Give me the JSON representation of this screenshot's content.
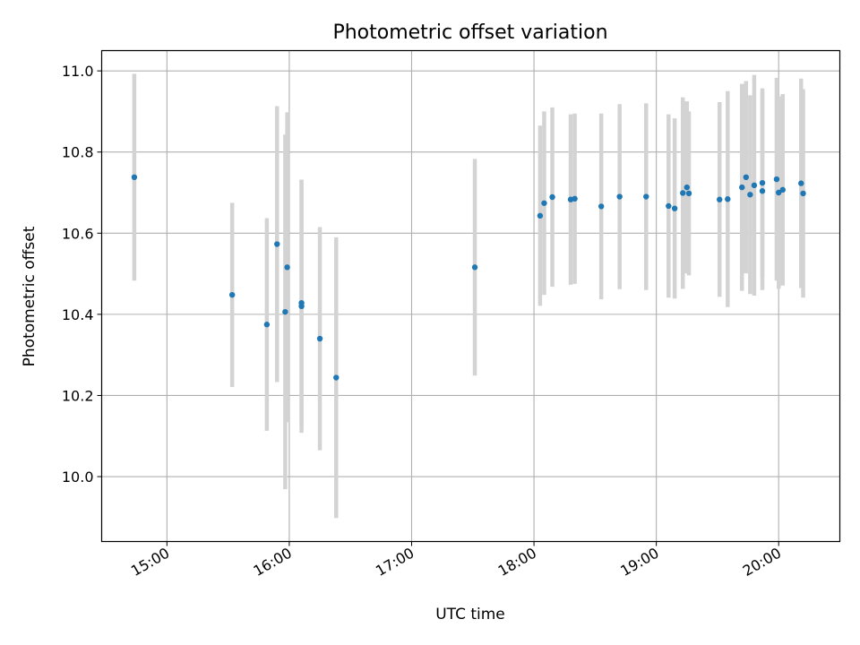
{
  "chart_data": {
    "type": "scatter",
    "title": "Photometric offset variation",
    "xlabel": "UTC time",
    "ylabel": "Photometric offset",
    "x_type": "time",
    "xlim": [
      "14:28",
      "20:30"
    ],
    "ylim": [
      9.84,
      11.05
    ],
    "x_ticks": [
      "15:00",
      "16:00",
      "17:00",
      "18:00",
      "19:00",
      "20:00"
    ],
    "y_ticks": [
      10.0,
      10.2,
      10.4,
      10.6,
      10.8,
      11.0
    ],
    "y_tick_labels": [
      "10.0",
      "10.2",
      "10.4",
      "10.6",
      "10.8",
      "11.0"
    ],
    "grid": true,
    "legend": "none",
    "colors": {
      "points": "#1f77b4",
      "error_bars": "#d3d3d3",
      "grid": "#b0b0b0",
      "axes": "#000000"
    },
    "series": [
      {
        "points": [
          {
            "x": "14:44",
            "y": 10.738,
            "err": 0.255
          },
          {
            "x": "15:32",
            "y": 10.448,
            "err": 0.227
          },
          {
            "x": "15:49",
            "y": 10.375,
            "err": 0.262
          },
          {
            "x": "15:54",
            "y": 10.573,
            "err": 0.34
          },
          {
            "x": "15:58",
            "y": 10.406,
            "err": 0.437
          },
          {
            "x": "15:59",
            "y": 10.516,
            "err": 0.382
          },
          {
            "x": "16:06",
            "y": 10.428,
            "err": 0.302
          },
          {
            "x": "16:06",
            "y": 10.42,
            "err": 0.312
          },
          {
            "x": "16:15",
            "y": 10.34,
            "err": 0.275
          },
          {
            "x": "16:23",
            "y": 10.244,
            "err": 0.346
          },
          {
            "x": "17:31",
            "y": 10.516,
            "err": 0.267
          },
          {
            "x": "18:03",
            "y": 10.643,
            "err": 0.222
          },
          {
            "x": "18:05",
            "y": 10.674,
            "err": 0.226
          },
          {
            "x": "18:09",
            "y": 10.689,
            "err": 0.221
          },
          {
            "x": "18:18",
            "y": 10.683,
            "err": 0.21
          },
          {
            "x": "18:20",
            "y": 10.685,
            "err": 0.21
          },
          {
            "x": "18:33",
            "y": 10.666,
            "err": 0.229
          },
          {
            "x": "18:42",
            "y": 10.69,
            "err": 0.228
          },
          {
            "x": "18:55",
            "y": 10.69,
            "err": 0.23
          },
          {
            "x": "19:06",
            "y": 10.667,
            "err": 0.226
          },
          {
            "x": "19:09",
            "y": 10.661,
            "err": 0.222
          },
          {
            "x": "19:13",
            "y": 10.699,
            "err": 0.236
          },
          {
            "x": "19:15",
            "y": 10.713,
            "err": 0.212
          },
          {
            "x": "19:16",
            "y": 10.698,
            "err": 0.202
          },
          {
            "x": "19:31",
            "y": 10.683,
            "err": 0.24
          },
          {
            "x": "19:35",
            "y": 10.684,
            "err": 0.266
          },
          {
            "x": "19:42",
            "y": 10.713,
            "err": 0.255
          },
          {
            "x": "19:44",
            "y": 10.738,
            "err": 0.237
          },
          {
            "x": "19:46",
            "y": 10.695,
            "err": 0.245
          },
          {
            "x": "19:48",
            "y": 10.718,
            "err": 0.272
          },
          {
            "x": "19:52",
            "y": 10.724,
            "err": 0.233
          },
          {
            "x": "19:52",
            "y": 10.704,
            "err": 0.244
          },
          {
            "x": "19:59",
            "y": 10.733,
            "err": 0.25
          },
          {
            "x": "20:00",
            "y": 10.7,
            "err": 0.237
          },
          {
            "x": "20:02",
            "y": 10.707,
            "err": 0.236
          },
          {
            "x": "20:11",
            "y": 10.723,
            "err": 0.258
          },
          {
            "x": "20:12",
            "y": 10.698,
            "err": 0.257
          }
        ]
      }
    ]
  }
}
